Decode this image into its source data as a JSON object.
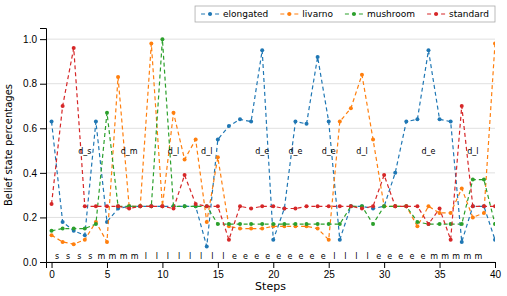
{
  "chart_data": {
    "type": "line",
    "xlabel": "Steps",
    "ylabel": "Belief state percentages",
    "xlim": [
      -0.5,
      40
    ],
    "ylim": [
      0.0,
      1.05
    ],
    "xticks": [
      0,
      5,
      10,
      15,
      20,
      25,
      30,
      35,
      40
    ],
    "yticks": [
      {
        "value": 0.0,
        "label": "0.0"
      },
      0.2,
      0.4,
      0.6,
      0.8,
      {
        "value": 1.0,
        "label": "1.0"
      }
    ],
    "grid": true,
    "legend": "top",
    "x": [
      0,
      1,
      2,
      3,
      4,
      5,
      6,
      7,
      8,
      9,
      10,
      11,
      12,
      13,
      14,
      15,
      16,
      17,
      18,
      19,
      20,
      21,
      22,
      23,
      24,
      25,
      26,
      27,
      28,
      29,
      30,
      31,
      32,
      33,
      34,
      35,
      36,
      37,
      38,
      39,
      40
    ],
    "series": [
      {
        "name": "elongated",
        "marker": "circle",
        "line_style": "dashed",
        "values": [
          0.63,
          0.18,
          0.14,
          0.12,
          0.63,
          0.18,
          0.24,
          0.25,
          0.25,
          0.25,
          0.25,
          0.25,
          0.25,
          0.25,
          0.07,
          0.55,
          0.61,
          0.64,
          0.63,
          0.95,
          0.1,
          0.24,
          0.63,
          0.62,
          0.92,
          0.63,
          0.1,
          0.25,
          0.25,
          0.24,
          0.25,
          0.4,
          0.63,
          0.64,
          0.95,
          0.64,
          0.63,
          0.09,
          0.25,
          0.25,
          0.1
        ]
      },
      {
        "name": "livarno",
        "marker": "circle",
        "line_style": "dashed",
        "values": [
          0.12,
          0.09,
          0.08,
          0.1,
          0.18,
          0.09,
          0.83,
          0.25,
          0.25,
          0.98,
          0.25,
          0.67,
          0.46,
          0.55,
          0.18,
          0.47,
          0.16,
          0.15,
          0.15,
          0.15,
          0.16,
          0.16,
          0.16,
          0.16,
          0.15,
          0.1,
          0.63,
          0.69,
          0.84,
          0.55,
          0.25,
          0.25,
          0.25,
          0.16,
          0.25,
          0.22,
          0.22,
          0.33,
          0.2,
          0.22,
          0.98
        ]
      },
      {
        "name": "mushroom",
        "marker": "circle",
        "line_style": "dashed",
        "values": [
          0.14,
          0.15,
          0.15,
          0.15,
          0.17,
          0.67,
          0.25,
          0.25,
          0.25,
          0.25,
          1.0,
          0.25,
          0.25,
          0.25,
          0.25,
          0.17,
          0.17,
          0.17,
          0.17,
          0.17,
          0.17,
          0.17,
          0.17,
          0.17,
          0.17,
          0.17,
          0.17,
          0.25,
          0.25,
          0.17,
          0.25,
          0.25,
          0.25,
          0.18,
          0.17,
          0.17,
          0.17,
          0.17,
          0.37,
          0.37,
          0.17
        ]
      },
      {
        "name": "standard",
        "marker": "circle",
        "line_style": "dashed",
        "values": [
          0.26,
          0.7,
          0.96,
          0.25,
          0.25,
          0.25,
          0.25,
          0.24,
          0.25,
          0.25,
          0.25,
          0.24,
          0.39,
          0.26,
          0.25,
          0.25,
          0.1,
          0.25,
          0.24,
          0.25,
          0.25,
          0.24,
          0.24,
          0.25,
          0.25,
          0.25,
          0.25,
          0.25,
          0.24,
          0.25,
          0.39,
          0.25,
          0.25,
          0.25,
          0.17,
          0.24,
          0.1,
          0.7,
          0.25,
          0.25,
          0.25
        ]
      }
    ],
    "annotations": [
      {
        "text": "s",
        "x": 0.5,
        "y": 0.01
      },
      {
        "text": "s",
        "x": 1.5,
        "y": 0.01
      },
      {
        "text": "s",
        "x": 2.5,
        "y": 0.01
      },
      {
        "text": "s",
        "x": 3.5,
        "y": 0.01
      },
      {
        "text": "m",
        "x": 4.5,
        "y": 0.01
      },
      {
        "text": "m",
        "x": 5.5,
        "y": 0.01
      },
      {
        "text": "m",
        "x": 6.5,
        "y": 0.01
      },
      {
        "text": "m",
        "x": 7.5,
        "y": 0.01
      },
      {
        "text": "l",
        "x": 8.5,
        "y": 0.01
      },
      {
        "text": "l",
        "x": 9.5,
        "y": 0.01
      },
      {
        "text": "l",
        "x": 10.5,
        "y": 0.01
      },
      {
        "text": "l",
        "x": 11.5,
        "y": 0.01
      },
      {
        "text": "l",
        "x": 12.5,
        "y": 0.01
      },
      {
        "text": "l",
        "x": 13.5,
        "y": 0.01
      },
      {
        "text": "l",
        "x": 14.5,
        "y": 0.01
      },
      {
        "text": "l",
        "x": 15.5,
        "y": 0.01
      },
      {
        "text": "e",
        "x": 16.5,
        "y": 0.01
      },
      {
        "text": "e",
        "x": 17.5,
        "y": 0.01
      },
      {
        "text": "e",
        "x": 18.5,
        "y": 0.01
      },
      {
        "text": "e",
        "x": 19.5,
        "y": 0.01
      },
      {
        "text": "e",
        "x": 20.5,
        "y": 0.01
      },
      {
        "text": "e",
        "x": 21.5,
        "y": 0.01
      },
      {
        "text": "e",
        "x": 22.5,
        "y": 0.01
      },
      {
        "text": "e",
        "x": 23.5,
        "y": 0.01
      },
      {
        "text": "e",
        "x": 24.5,
        "y": 0.01
      },
      {
        "text": "l",
        "x": 25.5,
        "y": 0.01
      },
      {
        "text": "l",
        "x": 26.5,
        "y": 0.01
      },
      {
        "text": "l",
        "x": 27.5,
        "y": 0.01
      },
      {
        "text": "l",
        "x": 28.5,
        "y": 0.01
      },
      {
        "text": "e",
        "x": 29.5,
        "y": 0.01
      },
      {
        "text": "e",
        "x": 30.5,
        "y": 0.01
      },
      {
        "text": "e",
        "x": 31.5,
        "y": 0.01
      },
      {
        "text": "e",
        "x": 32.5,
        "y": 0.01
      },
      {
        "text": "e",
        "x": 33.5,
        "y": 0.01
      },
      {
        "text": "m",
        "x": 34.5,
        "y": 0.01
      },
      {
        "text": "m",
        "x": 35.5,
        "y": 0.01
      },
      {
        "text": "m",
        "x": 36.5,
        "y": 0.01
      },
      {
        "text": "m",
        "x": 37.5,
        "y": 0.01
      },
      {
        "text": "m",
        "x": 38.5,
        "y": 0.01
      },
      {
        "text": "d_s",
        "x": 3,
        "y": 0.48
      },
      {
        "text": "d_m",
        "x": 7,
        "y": 0.48
      },
      {
        "text": "d_l",
        "x": 11,
        "y": 0.48
      },
      {
        "text": "d_l",
        "x": 14,
        "y": 0.48
      },
      {
        "text": "d_e",
        "x": 19,
        "y": 0.48
      },
      {
        "text": "d_e",
        "x": 22,
        "y": 0.48
      },
      {
        "text": "d_e",
        "x": 25,
        "y": 0.48
      },
      {
        "text": "d_l",
        "x": 28,
        "y": 0.48
      },
      {
        "text": "d_e",
        "x": 34,
        "y": 0.48
      },
      {
        "text": "d_l",
        "x": 38,
        "y": 0.48
      }
    ]
  }
}
